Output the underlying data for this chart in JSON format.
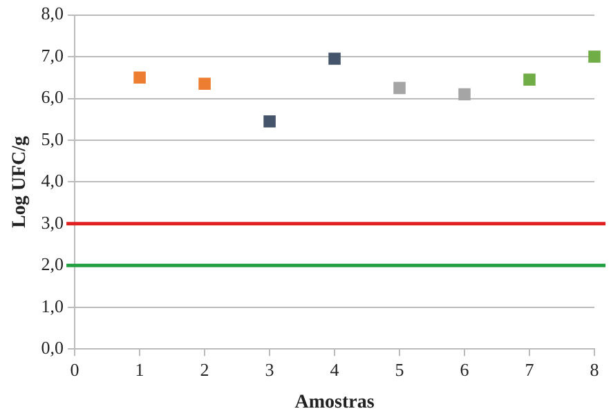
{
  "chart_data": {
    "type": "scatter",
    "xlabel": "Amostras",
    "ylabel": "Log UFC/g",
    "x": [
      1,
      2,
      3,
      4,
      5,
      6,
      7,
      8
    ],
    "values": [
      6.5,
      6.35,
      5.45,
      6.95,
      6.25,
      6.1,
      6.45,
      7.0
    ],
    "colors": [
      "#ed7d31",
      "#ed7d31",
      "#44546a",
      "#44546a",
      "#a5a5a5",
      "#a5a5a5",
      "#70ad47",
      "#70ad47"
    ],
    "marker": "square",
    "xlim": [
      0,
      8
    ],
    "xticks": [
      0,
      1,
      2,
      3,
      4,
      5,
      6,
      7,
      8
    ],
    "ylim": [
      0,
      8
    ],
    "yticks": [
      {
        "value": 0,
        "label": "0,0"
      },
      {
        "value": 1,
        "label": "1,0"
      },
      {
        "value": 2,
        "label": "2,0"
      },
      {
        "value": 3,
        "label": "3,0"
      },
      {
        "value": 4,
        "label": "4,0"
      },
      {
        "value": 5,
        "label": "5,0"
      },
      {
        "value": 6,
        "label": "6,0"
      },
      {
        "value": 7,
        "label": "7,0"
      },
      {
        "value": 8,
        "label": "8,0"
      }
    ],
    "ref_lines": [
      {
        "axis": "y",
        "value": 3,
        "color": "#e02020"
      },
      {
        "axis": "y",
        "value": 2,
        "color": "#20a040"
      }
    ],
    "grid": "y",
    "legend": false
  }
}
